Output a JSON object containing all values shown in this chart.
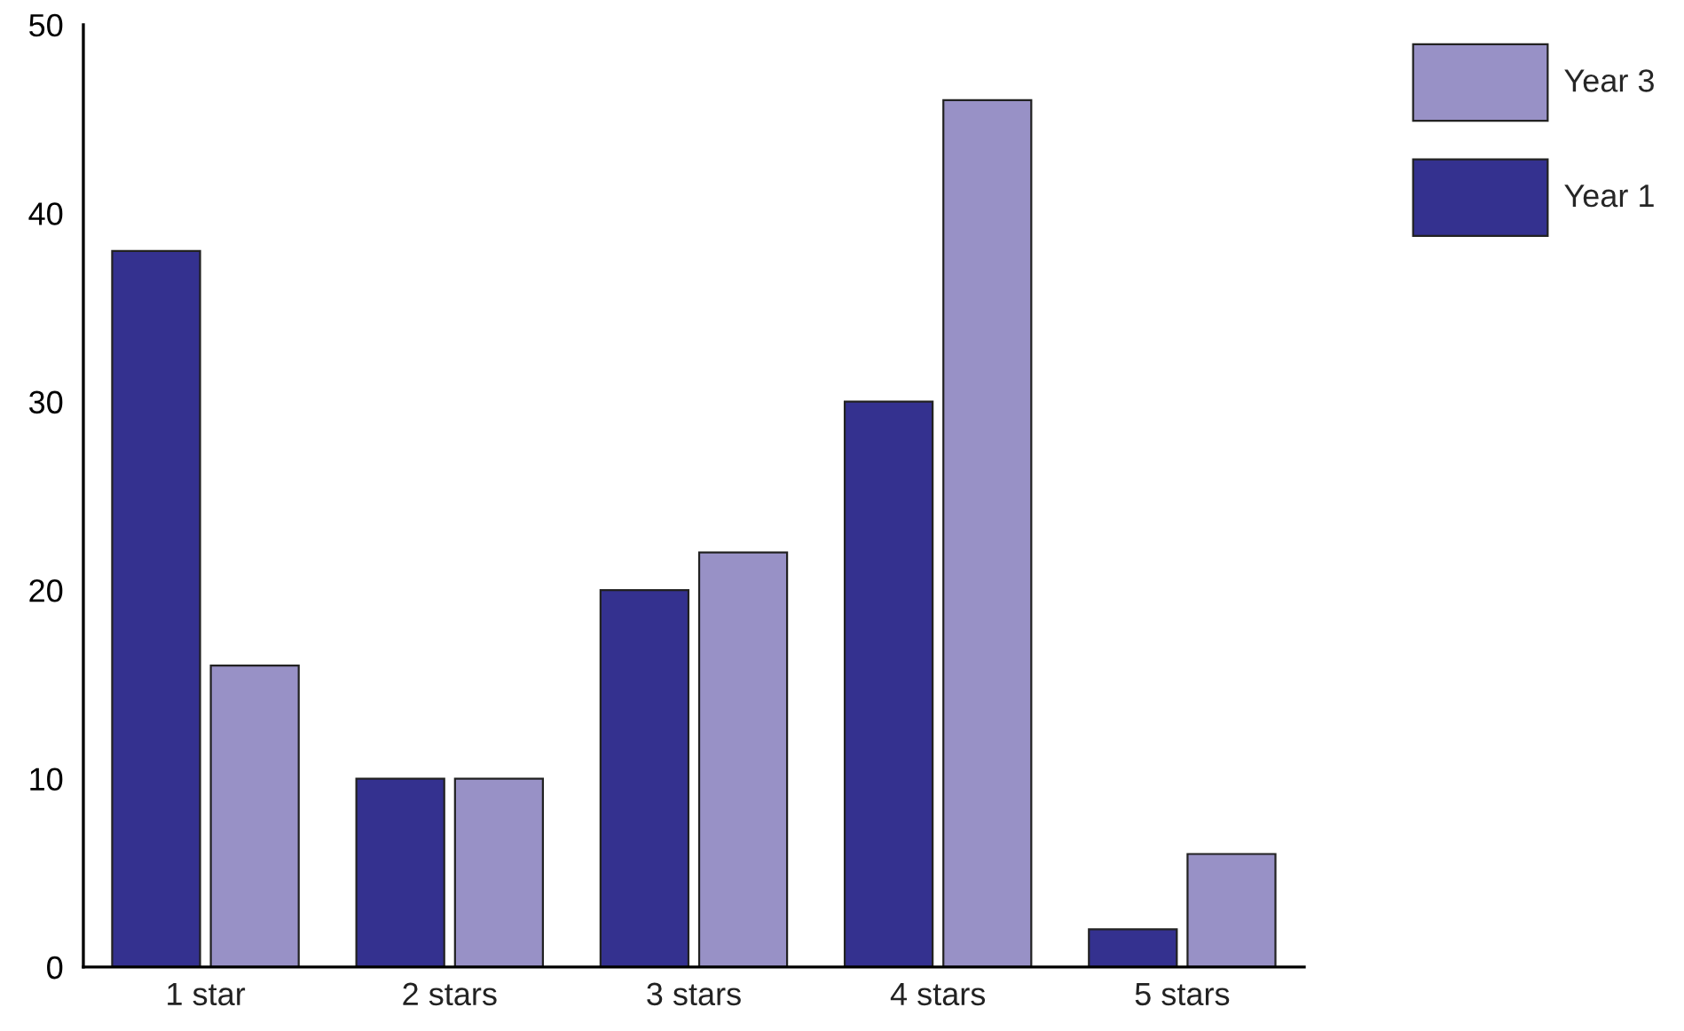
{
  "chart_data": {
    "type": "bar",
    "categories": [
      "1 star",
      "2 stars",
      "3 stars",
      "4 stars",
      "5 stars"
    ],
    "series": [
      {
        "name": "Year 1",
        "color": "#34318f",
        "values": [
          38,
          10,
          20,
          30,
          2
        ]
      },
      {
        "name": "Year 3",
        "color": "#9891c6",
        "values": [
          16,
          10,
          22,
          46,
          6
        ]
      }
    ],
    "ylim": [
      0,
      50
    ],
    "yticks": [
      0,
      10,
      20,
      30,
      40,
      50
    ],
    "grid": false,
    "legend": "top right"
  }
}
